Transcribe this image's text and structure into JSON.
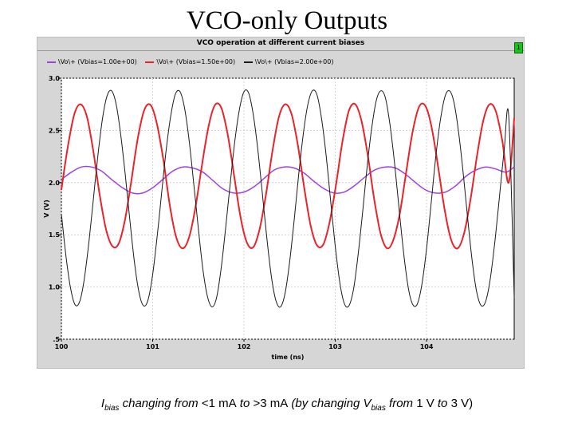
{
  "slide": {
    "title": "VCO-only Outputs",
    "caption": {
      "i_main": "I",
      "i_sub": "bias",
      "t1": " changing from ",
      "t2": "<1 mA",
      "t3": " to ",
      "t4": ">3 mA",
      "t5": " (by changing ",
      "v_main": "V",
      "v_sub": "bias",
      "t6": " from ",
      "t7": "1 V",
      "t8": " to ",
      "t9": "3 V",
      "t10": ")"
    }
  },
  "plot_window": {
    "badge": "1"
  },
  "chart_data": {
    "type": "line",
    "title": "VCO operation at different current biases",
    "xlabel": "time (ns)",
    "ylabel": "V (V)",
    "xlim": [
      100,
      104.96
    ],
    "ylim": [
      0.5,
      3.0
    ],
    "xticks": [
      100,
      101,
      102,
      103,
      104
    ],
    "xtick_labels": [
      "100",
      "101",
      "102",
      "103",
      "104"
    ],
    "yticks": [
      0.5,
      1.0,
      1.5,
      2.0,
      2.5,
      3.0
    ],
    "ytick_labels": [
      ".5",
      "1.0",
      "1.5",
      "2.0",
      "2.5",
      "3.0"
    ],
    "grid": true,
    "legend_position": "top-left",
    "series": [
      {
        "name": "\\Vo\\+  (Vbias=1.00e+00)",
        "color": "#a040e0",
        "x": [
          100.0,
          100.11,
          100.22,
          100.33,
          100.44,
          100.55,
          100.67,
          100.78,
          100.89,
          101.0,
          101.11,
          101.22,
          101.33,
          101.44,
          101.55,
          101.66,
          101.77,
          101.89,
          102.0,
          102.11,
          102.22,
          102.33,
          102.44,
          102.55,
          102.66,
          102.77,
          102.88,
          102.99,
          103.1,
          103.21,
          103.32,
          103.43,
          103.55,
          103.66,
          103.77,
          103.88,
          103.99,
          104.1,
          104.21,
          104.32,
          104.43,
          104.54,
          104.65,
          104.76,
          104.87,
          104.96
        ],
        "y": [
          2.03,
          2.1,
          2.15,
          2.15,
          2.11,
          2.03,
          1.95,
          1.9,
          1.9,
          1.95,
          2.03,
          2.11,
          2.15,
          2.14,
          2.1,
          2.02,
          1.94,
          1.9,
          1.91,
          1.96,
          2.04,
          2.12,
          2.15,
          2.14,
          2.09,
          2.01,
          1.94,
          1.9,
          1.91,
          1.97,
          2.05,
          2.12,
          2.15,
          2.14,
          2.08,
          2.0,
          1.93,
          1.9,
          1.91,
          1.97,
          2.06,
          2.12,
          2.15,
          2.13,
          2.1,
          2.15
        ]
      },
      {
        "name": "\\Vo\\+  (Vbias=1.50e+00)",
        "color": "#e8232a",
        "x": [
          100.0,
          100.07,
          100.14,
          100.21,
          100.28,
          100.35,
          100.42,
          100.49,
          100.56,
          100.63,
          100.7,
          100.77,
          100.84,
          100.91,
          100.98,
          101.05,
          101.12,
          101.19,
          101.26,
          101.33,
          101.4,
          101.47,
          101.54,
          101.61,
          101.68,
          101.75,
          101.82,
          101.89,
          101.96,
          102.03,
          102.1,
          102.17,
          102.24,
          102.31,
          102.38,
          102.45,
          102.52,
          102.59,
          102.66,
          102.73,
          102.8,
          102.87,
          102.94,
          103.01,
          103.08,
          103.15,
          103.22,
          103.29,
          103.36,
          103.43,
          103.5,
          103.57,
          103.64,
          103.71,
          103.78,
          103.85,
          103.92,
          103.99,
          104.06,
          104.13,
          104.2,
          104.27,
          104.34,
          104.41,
          104.48,
          104.55,
          104.62,
          104.69,
          104.76,
          104.83,
          104.9,
          104.96
        ],
        "y": [
          1.93,
          2.34,
          2.65,
          2.75,
          2.63,
          2.3,
          1.88,
          1.55,
          1.39,
          1.42,
          1.66,
          2.04,
          2.44,
          2.7,
          2.74,
          2.55,
          2.2,
          1.77,
          1.47,
          1.37,
          1.48,
          1.77,
          2.17,
          2.53,
          2.74,
          2.72,
          2.47,
          2.08,
          1.68,
          1.43,
          1.38,
          1.55,
          1.88,
          2.29,
          2.62,
          2.75,
          2.66,
          2.36,
          1.95,
          1.59,
          1.4,
          1.41,
          1.63,
          1.99,
          2.4,
          2.69,
          2.75,
          2.58,
          2.24,
          1.82,
          1.5,
          1.37,
          1.46,
          1.72,
          2.12,
          2.5,
          2.73,
          2.73,
          2.51,
          2.13,
          1.73,
          1.45,
          1.37,
          1.51,
          1.83,
          2.24,
          2.59,
          2.75,
          2.68,
          2.4,
          2.0,
          2.62
        ]
      },
      {
        "name": "\\Vo\\+  (Vbias=2.00e+00)",
        "color": "#1a1a1a",
        "x": [
          100.0,
          100.05,
          100.1,
          100.15,
          100.2,
          100.25,
          100.3,
          100.35,
          100.4,
          100.45,
          100.5,
          100.55,
          100.6,
          100.65,
          100.7,
          100.75,
          100.8,
          100.85,
          100.9,
          100.95,
          101.0,
          101.05,
          101.1,
          101.15,
          101.2,
          101.25,
          101.3,
          101.35,
          101.4,
          101.45,
          101.5,
          101.55,
          101.6,
          101.65,
          101.7,
          101.75,
          101.8,
          101.85,
          101.9,
          101.95,
          102.0,
          102.05,
          102.1,
          102.15,
          102.2,
          102.25,
          102.3,
          102.35,
          102.4,
          102.45,
          102.5,
          102.55,
          102.6,
          102.65,
          102.7,
          102.75,
          102.8,
          102.85,
          102.9,
          102.95,
          103.0,
          103.05,
          103.1,
          103.15,
          103.2,
          103.25,
          103.3,
          103.35,
          103.4,
          103.45,
          103.5,
          103.55,
          103.6,
          103.65,
          103.7,
          103.75,
          103.8,
          103.85,
          103.9,
          103.95,
          104.0,
          104.05,
          104.1,
          104.15,
          104.2,
          104.25,
          104.3,
          104.35,
          104.4,
          104.45,
          104.5,
          104.55,
          104.6,
          104.65,
          104.7,
          104.75,
          104.8,
          104.85,
          104.9,
          104.96
        ],
        "y": [
          1.7,
          1.3,
          0.99,
          0.83,
          0.86,
          1.07,
          1.42,
          1.84,
          2.26,
          2.61,
          2.83,
          2.88,
          2.75,
          2.46,
          2.07,
          1.64,
          1.24,
          0.95,
          0.82,
          0.88,
          1.12,
          1.49,
          1.92,
          2.33,
          2.65,
          2.85,
          2.87,
          2.71,
          2.4,
          1.99,
          1.56,
          1.17,
          0.91,
          0.81,
          0.9,
          1.18,
          1.57,
          2.0,
          2.4,
          2.7,
          2.87,
          2.86,
          2.66,
          2.33,
          1.91,
          1.47,
          1.1,
          0.87,
          0.81,
          0.94,
          1.24,
          1.64,
          2.08,
          2.47,
          2.75,
          2.88,
          2.84,
          2.61,
          2.26,
          1.82,
          1.39,
          1.04,
          0.84,
          0.82,
          0.98,
          1.31,
          1.72,
          2.16,
          2.53,
          2.79,
          2.88,
          2.81,
          2.55,
          2.18,
          1.74,
          1.32,
          0.99,
          0.83,
          0.84,
          1.03,
          1.37,
          1.8,
          2.24,
          2.59,
          2.82,
          2.88,
          2.77,
          2.49,
          2.1,
          1.66,
          1.25,
          0.95,
          0.82,
          0.87,
          1.09,
          1.45,
          1.88,
          2.31,
          2.64,
          0.9
        ]
      }
    ]
  }
}
